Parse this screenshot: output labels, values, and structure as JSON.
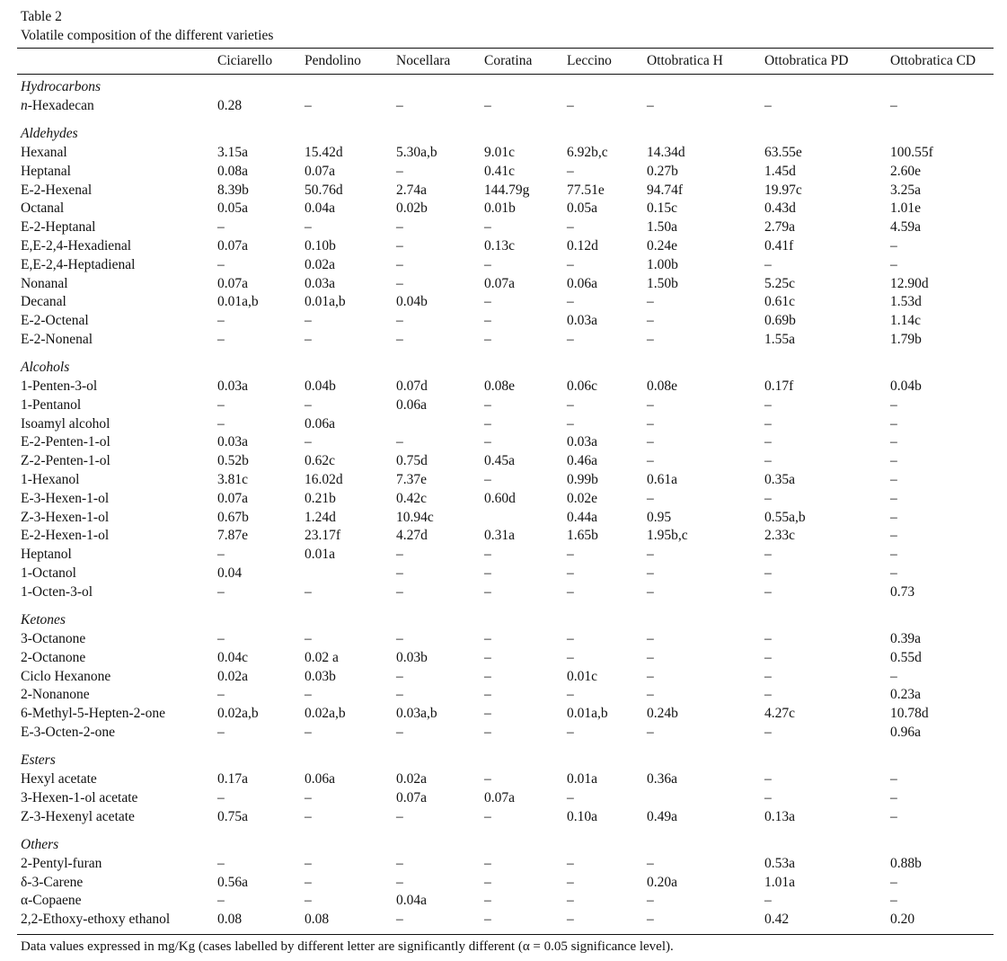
{
  "table": {
    "label": "Table 2",
    "title": "Volatile composition of the different varieties",
    "columns": [
      "Ciciarello",
      "Pendolino",
      "Nocellara",
      "Coratina",
      "Leccino",
      "Ottobratica H",
      "Ottobratica PD",
      "Ottobratica CD"
    ],
    "sections": [
      {
        "name": "Hydrocarbons",
        "rows": [
          {
            "name": "n-Hexadecan",
            "cells": [
              "0.28",
              "–",
              "–",
              "–",
              "–",
              "–",
              "–",
              "–"
            ]
          }
        ]
      },
      {
        "name": "Aldehydes",
        "rows": [
          {
            "name": "Hexanal",
            "cells": [
              "3.15a",
              "15.42d",
              "5.30a,b",
              "9.01c",
              "6.92b,c",
              "14.34d",
              "63.55e",
              "100.55f"
            ]
          },
          {
            "name": "Heptanal",
            "cells": [
              "0.08a",
              "0.07a",
              "–",
              "0.41c",
              "–",
              "0.27b",
              "1.45d",
              "2.60e"
            ]
          },
          {
            "name": "E-2-Hexenal",
            "cells": [
              "8.39b",
              "50.76d",
              "2.74a",
              "144.79g",
              "77.51e",
              "94.74f",
              "19.97c",
              "3.25a"
            ]
          },
          {
            "name": "Octanal",
            "cells": [
              "0.05a",
              "0.04a",
              "0.02b",
              "0.01b",
              "0.05a",
              "0.15c",
              "0.43d",
              "1.01e"
            ]
          },
          {
            "name": "E-2-Heptanal",
            "cells": [
              "–",
              "–",
              "–",
              "–",
              "–",
              "1.50a",
              "2.79a",
              "4.59a"
            ]
          },
          {
            "name": "E,E-2,4-Hexadienal",
            "cells": [
              "0.07a",
              "0.10b",
              "–",
              "0.13c",
              "0.12d",
              "0.24e",
              "0.41f",
              "–"
            ]
          },
          {
            "name": "E,E-2,4-Heptadienal",
            "cells": [
              "–",
              "0.02a",
              "–",
              "–",
              "–",
              "1.00b",
              "–",
              "–"
            ]
          },
          {
            "name": "Nonanal",
            "cells": [
              "0.07a",
              "0.03a",
              "–",
              "0.07a",
              "0.06a",
              "1.50b",
              "5.25c",
              "12.90d"
            ]
          },
          {
            "name": "Decanal",
            "cells": [
              "0.01a,b",
              "0.01a,b",
              "0.04b",
              "–",
              "–",
              "–",
              "0.61c",
              "1.53d"
            ]
          },
          {
            "name": "E-2-Octenal",
            "cells": [
              "–",
              "–",
              "–",
              "–",
              "0.03a",
              "–",
              "0.69b",
              "1.14c"
            ]
          },
          {
            "name": "E-2-Nonenal",
            "cells": [
              "–",
              "–",
              "–",
              "–",
              "–",
              "–",
              "1.55a",
              "1.79b"
            ]
          }
        ]
      },
      {
        "name": "Alcohols",
        "rows": [
          {
            "name": "1-Penten-3-ol",
            "cells": [
              "0.03a",
              "0.04b",
              "0.07d",
              "0.08e",
              "0.06c",
              "0.08e",
              "0.17f",
              "0.04b"
            ]
          },
          {
            "name": "1-Pentanol",
            "cells": [
              "–",
              "–",
              "0.06a",
              "–",
              "–",
              "–",
              "–",
              "–"
            ]
          },
          {
            "name": "Isoamyl alcohol",
            "cells": [
              "–",
              "0.06a",
              "",
              "–",
              "–",
              "–",
              "–",
              "–"
            ]
          },
          {
            "name": "E-2-Penten-1-ol",
            "cells": [
              "0.03a",
              "–",
              "–",
              "–",
              "0.03a",
              "–",
              "–",
              "–"
            ]
          },
          {
            "name": "Z-2-Penten-1-ol",
            "cells": [
              "0.52b",
              "0.62c",
              "0.75d",
              "0.45a",
              "0.46a",
              "–",
              "–",
              "–"
            ]
          },
          {
            "name": "1-Hexanol",
            "cells": [
              "3.81c",
              "16.02d",
              "7.37e",
              "–",
              "0.99b",
              "0.61a",
              "0.35a",
              "–"
            ]
          },
          {
            "name": "E-3-Hexen-1-ol",
            "cells": [
              "0.07a",
              "0.21b",
              "0.42c",
              "0.60d",
              "0.02e",
              "–",
              "–",
              "–"
            ]
          },
          {
            "name": "Z-3-Hexen-1-ol",
            "cells": [
              "0.67b",
              "1.24d",
              "10.94c",
              "",
              "0.44a",
              "0.95",
              "0.55a,b",
              "–"
            ]
          },
          {
            "name": "E-2-Hexen-1-ol",
            "cells": [
              "7.87e",
              "23.17f",
              "4.27d",
              "0.31a",
              "1.65b",
              "1.95b,c",
              "2.33c",
              "–"
            ]
          },
          {
            "name": "Heptanol",
            "cells": [
              "–",
              "0.01a",
              "–",
              "–",
              "–",
              "–",
              "–",
              "–"
            ]
          },
          {
            "name": "1-Octanol",
            "cells": [
              "0.04",
              "",
              "–",
              "–",
              "–",
              "–",
              "–",
              "–"
            ]
          },
          {
            "name": "1-Octen-3-ol",
            "cells": [
              "–",
              "–",
              "–",
              "–",
              "–",
              "–",
              "–",
              "0.73"
            ]
          }
        ]
      },
      {
        "name": "Ketones",
        "rows": [
          {
            "name": "3-Octanone",
            "cells": [
              "–",
              "–",
              "–",
              "–",
              "–",
              "–",
              "–",
              "0.39a"
            ]
          },
          {
            "name": "2-Octanone",
            "cells": [
              "0.04c",
              "0.02 a",
              "0.03b",
              "–",
              "–",
              "–",
              "–",
              "0.55d"
            ]
          },
          {
            "name": "Ciclo Hexanone",
            "cells": [
              "0.02a",
              "0.03b",
              "–",
              "–",
              "0.01c",
              "–",
              "–",
              "–"
            ]
          },
          {
            "name": "2-Nonanone",
            "cells": [
              "–",
              "–",
              "–",
              "–",
              "–",
              "–",
              "–",
              "0.23a"
            ]
          },
          {
            "name": "6-Methyl-5-Hepten-2-one",
            "cells": [
              "0.02a,b",
              "0.02a,b",
              "0.03a,b",
              "–",
              "0.01a,b",
              "0.24b",
              "4.27c",
              "10.78d"
            ]
          },
          {
            "name": "E-3-Octen-2-one",
            "cells": [
              "–",
              "–",
              "–",
              "–",
              "–",
              "–",
              "–",
              "0.96a"
            ]
          }
        ]
      },
      {
        "name": "Esters",
        "rows": [
          {
            "name": "Hexyl acetate",
            "cells": [
              "0.17a",
              "0.06a",
              "0.02a",
              "–",
              "0.01a",
              "0.36a",
              "–",
              "–"
            ]
          },
          {
            "name": "3-Hexen-1-ol acetate",
            "cells": [
              "–",
              "–",
              "0.07a",
              "0.07a",
              "–",
              "",
              "–",
              "–"
            ]
          },
          {
            "name": "Z-3-Hexenyl acetate",
            "cells": [
              "0.75a",
              "–",
              "–",
              "–",
              "0.10a",
              "0.49a",
              "0.13a",
              "–"
            ]
          }
        ]
      },
      {
        "name": "Others",
        "rows": [
          {
            "name": "2-Pentyl-furan",
            "cells": [
              "–",
              "–",
              "–",
              "–",
              "–",
              "–",
              "0.53a",
              "0.88b"
            ]
          },
          {
            "name": "δ-3-Carene",
            "cells": [
              "0.56a",
              "–",
              "–",
              "–",
              "–",
              "0.20a",
              "1.01a",
              "–"
            ]
          },
          {
            "name": "α-Copaene",
            "cells": [
              "–",
              "–",
              "0.04a",
              "–",
              "–",
              "–",
              "–",
              "–"
            ]
          },
          {
            "name": "2,2-Ethoxy-ethoxy ethanol",
            "cells": [
              "0.08",
              "0.08",
              "–",
              "–",
              "–",
              "–",
              "0.42",
              "0.20"
            ]
          }
        ]
      }
    ],
    "footnote": "Data values expressed in mg/Kg (cases labelled by different letter are significantly different (α = 0.05 significance level)."
  }
}
